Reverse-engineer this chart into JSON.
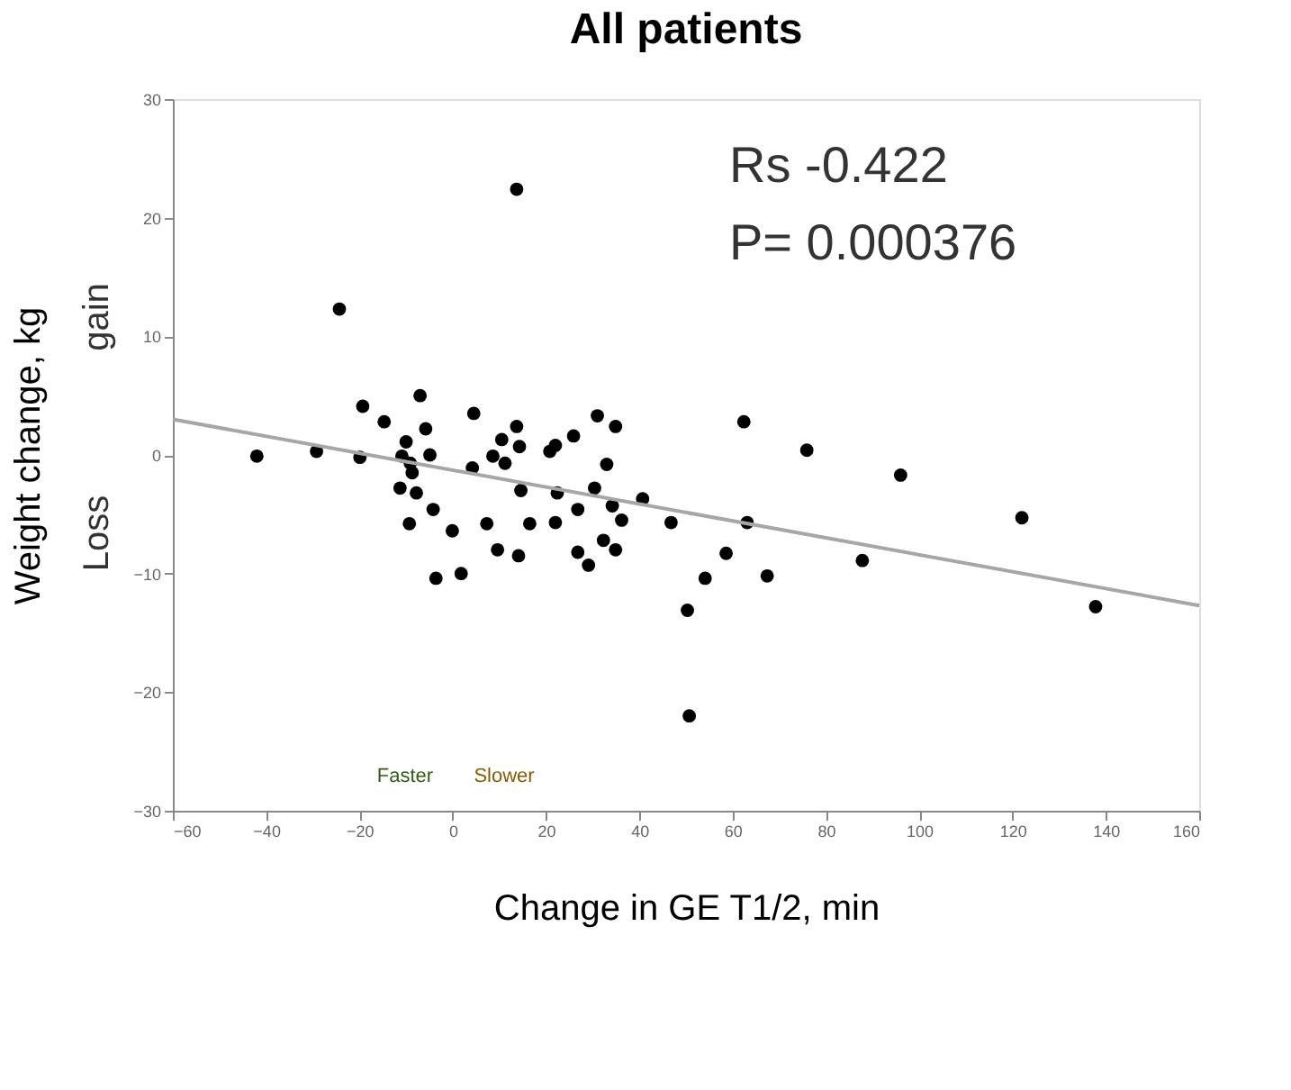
{
  "chart_data": {
    "type": "scatter",
    "title": "All patients",
    "xlabel": "Change in GE T1/2, min",
    "ylabel": "Weight change, kg",
    "xlim": [
      -60,
      160
    ],
    "xticks": [
      -60,
      -40,
      -20,
      0,
      20,
      40,
      60,
      80,
      100,
      120,
      140,
      160
    ],
    "ylim": [
      -30,
      30
    ],
    "yticks": [
      -30,
      -20,
      -10,
      0,
      10,
      20,
      30
    ],
    "grid": false,
    "annotations": [
      "Rs -0.422",
      "P= 0.000376",
      "gain",
      "Loss",
      "Faster",
      "Slower"
    ],
    "series": [
      {
        "marker": "circle",
        "color": "#000000",
        "x": [
          13.7,
          -24.3,
          -42,
          -29.2,
          -19.9,
          -19.3,
          -14.7,
          -7,
          -5.8,
          -10,
          -10.9,
          -9.1,
          -4.9,
          -8.7,
          -11.3,
          -7.8,
          -4.2,
          -9.3,
          -0.1,
          -3.6,
          1.8,
          4.5,
          4.2,
          7.3,
          9.6,
          14.1,
          8.6,
          11.2,
          10.5,
          13.7,
          14.3,
          14.6,
          16.5,
          20.8,
          22,
          25.9,
          22.4,
          22,
          26.8,
          26.8,
          29.1,
          31,
          34.9,
          33,
          30.4,
          34.2,
          36.2,
          32.3,
          34.9,
          40.7,
          46.8,
          50.3,
          54.1,
          58.6,
          50.7,
          62.4,
          75.9,
          96,
          122,
          137.8,
          63.1,
          67.4,
          87.8
        ],
        "values": [
          22.4,
          12.3,
          -0.1,
          0.3,
          -0.2,
          4.1,
          2.8,
          5,
          2.2,
          1.1,
          -0.1,
          -0.7,
          0,
          -1.5,
          -2.8,
          -3.2,
          -4.6,
          -5.8,
          -6.4,
          -10.4,
          -10,
          3.5,
          -1.1,
          -5.8,
          -8,
          -8.5,
          -0.1,
          -0.7,
          1.3,
          2.4,
          0.7,
          -3,
          -5.8,
          0.3,
          0.8,
          1.6,
          -3.2,
          -5.7,
          -4.6,
          -8.2,
          -9.3,
          3.3,
          2.4,
          -0.8,
          -2.8,
          -4.3,
          -5.5,
          -7.2,
          -8,
          -3.7,
          -5.7,
          -13.1,
          -10.4,
          -8.3,
          -22,
          2.8,
          0.4,
          -1.7,
          -5.3,
          -12.8,
          -5.7,
          -10.2,
          -8.9
        ]
      },
      {
        "type": "line",
        "color": "#a6a6a6",
        "x": [
          -60,
          160
        ],
        "values": [
          3,
          -12.7
        ]
      }
    ]
  }
}
